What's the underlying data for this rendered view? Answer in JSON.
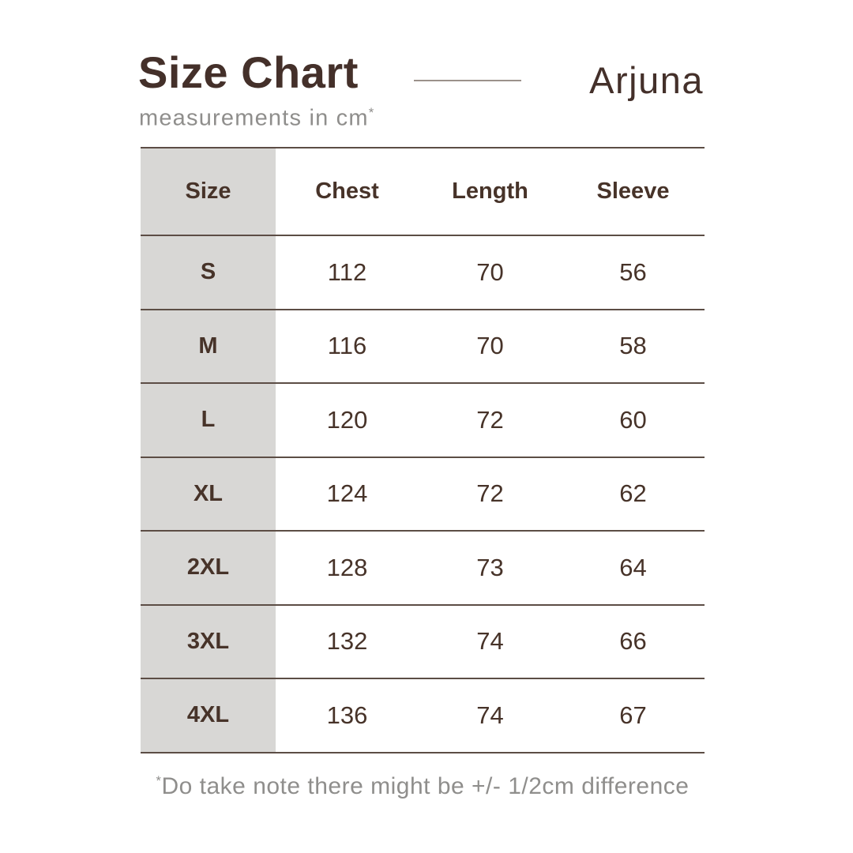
{
  "header": {
    "title": "Size Chart",
    "subtitle": "measurements in cm",
    "subtitle_asterisk": "*",
    "brand": "Arjuna"
  },
  "table": {
    "columns": [
      "Size",
      "Chest",
      "Length",
      "Sleeve"
    ],
    "rows": [
      {
        "size": "S",
        "chest": "112",
        "length": "70",
        "sleeve": "56"
      },
      {
        "size": "M",
        "chest": "116",
        "length": "70",
        "sleeve": "58"
      },
      {
        "size": "L",
        "chest": "120",
        "length": "72",
        "sleeve": "60"
      },
      {
        "size": "XL",
        "chest": "124",
        "length": "72",
        "sleeve": "62"
      },
      {
        "size": "2XL",
        "chest": "128",
        "length": "73",
        "sleeve": "64"
      },
      {
        "size": "3XL",
        "chest": "132",
        "length": "74",
        "sleeve": "66"
      },
      {
        "size": "4XL",
        "chest": "136",
        "length": "74",
        "sleeve": "67"
      }
    ]
  },
  "footnote": {
    "asterisk": "*",
    "text": "Do take note there might be +/- 1/2cm difference"
  },
  "chart_data": {
    "type": "table",
    "title": "Size Chart",
    "subtitle": "measurements in cm*",
    "brand": "Arjuna",
    "units": "cm",
    "columns": [
      "Size",
      "Chest",
      "Length",
      "Sleeve"
    ],
    "rows": [
      [
        "S",
        112,
        70,
        56
      ],
      [
        "M",
        116,
        70,
        58
      ],
      [
        "L",
        120,
        72,
        60
      ],
      [
        "XL",
        124,
        72,
        62
      ],
      [
        "2XL",
        128,
        73,
        64
      ],
      [
        "3XL",
        132,
        74,
        66
      ],
      [
        "4XL",
        136,
        74,
        67
      ]
    ],
    "footnote": "*Do take note there might be +/- 1/2cm difference",
    "layout_hints": {
      "grid": "horizontal-rules-only",
      "first_column_shaded": true
    }
  },
  "colors": {
    "background": "#ffffff",
    "title_brown": "#44302a",
    "text_brown": "#473329",
    "muted_gray": "#8f8e8c",
    "size_col_bg": "#d8d7d5",
    "line_brown": "#5c4d45",
    "divider_gray": "#9b918b"
  }
}
